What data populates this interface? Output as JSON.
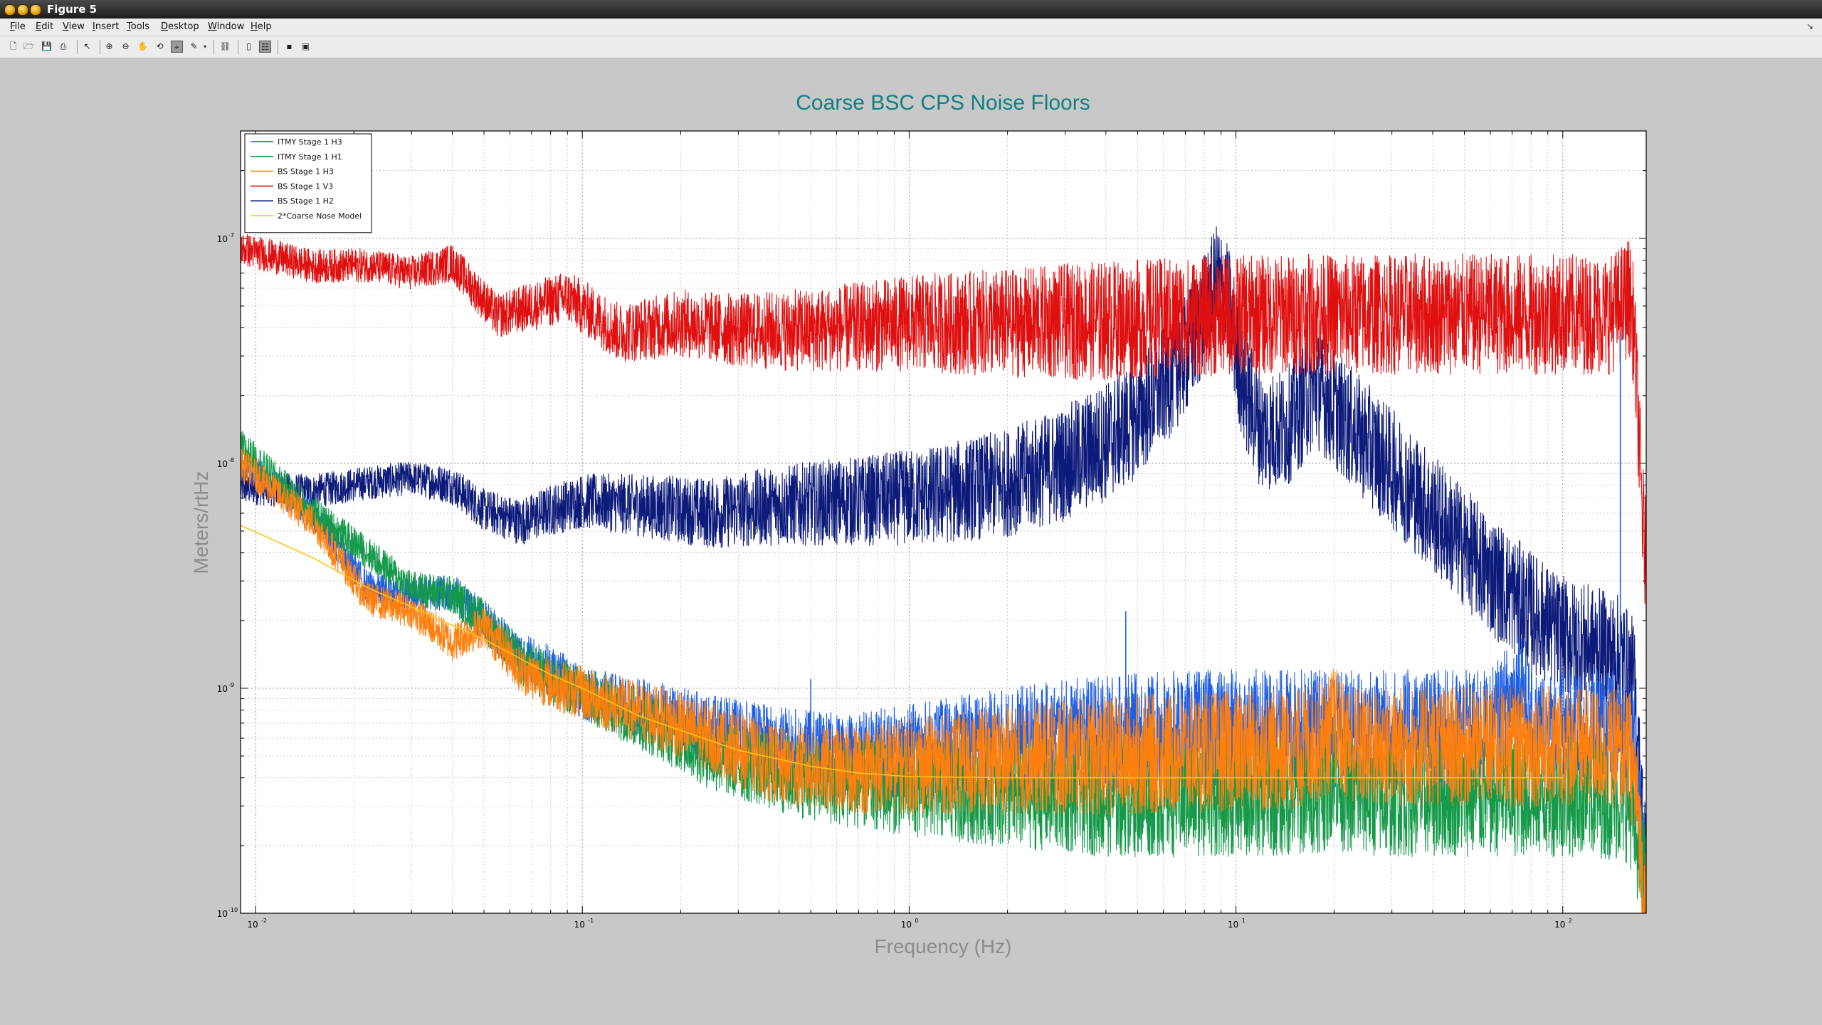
{
  "window": {
    "title": "Figure 5",
    "menu": [
      "File",
      "Edit",
      "View",
      "Insert",
      "Tools",
      "Desktop",
      "Window",
      "Help"
    ],
    "menu_accel": [
      "F",
      "E",
      "V",
      "I",
      "T",
      "D",
      "W",
      "H"
    ],
    "toolbar_icons": [
      "new-figure-icon",
      "open-file-icon",
      "save-icon",
      "print-icon",
      "select-arrow-icon",
      "zoom-in-icon",
      "zoom-out-icon",
      "pan-hand-icon",
      "rotate-3d-icon",
      "data-cursor-icon",
      "brush-icon",
      "link-icon",
      "colorbar-icon",
      "legend-icon",
      "hide-plot-tools-icon",
      "show-plot-tools-icon"
    ]
  },
  "chart_data": {
    "type": "line",
    "title": "Coarse BSC CPS Noise Floors",
    "xlabel": "Frequency (Hz)",
    "ylabel": "Meters/rtHz",
    "xscale": "log",
    "yscale": "log",
    "xlim": [
      0.009,
      180
    ],
    "ylim": [
      1e-10,
      3e-07
    ],
    "grid": true,
    "legend_position": "top-left",
    "xticks": [
      0.01,
      0.1,
      1,
      10,
      100
    ],
    "xtick_labels": [
      [
        "10",
        "-2"
      ],
      [
        "10",
        "-1"
      ],
      [
        "10",
        "0"
      ],
      [
        "10",
        "1"
      ],
      [
        "10",
        "2"
      ]
    ],
    "yticks": [
      1e-10,
      1e-09,
      1e-08,
      1e-07
    ],
    "ytick_labels": [
      [
        "10",
        "-10"
      ],
      [
        "10",
        "-9"
      ],
      [
        "10",
        "-8"
      ],
      [
        "10",
        "-7"
      ]
    ],
    "colors": {
      "title": "#0f8080",
      "axis_label": "#8c8c8c"
    },
    "series": [
      {
        "name": "ITMY Stage 1 H3",
        "color": "#1f5fe6",
        "x": [
          0.009,
          0.015,
          0.022,
          0.03,
          0.04,
          0.05,
          0.065,
          0.08,
          0.1,
          0.13,
          0.18,
          0.25,
          0.4,
          0.6,
          1,
          2,
          4,
          8,
          15,
          25,
          40,
          60,
          70,
          75,
          80,
          100,
          130,
          150,
          165,
          175,
          180
        ],
        "y": [
          1e-08,
          6e-09,
          2.8e-09,
          2.6e-09,
          2.7e-09,
          2e-09,
          1.4e-09,
          1.2e-09,
          9.5e-10,
          8.5e-10,
          7.5e-10,
          6.5e-10,
          5.5e-10,
          5e-10,
          5.2e-10,
          5.8e-10,
          6.2e-10,
          6.5e-10,
          6.6e-10,
          6.6e-10,
          6.5e-10,
          6.5e-10,
          9e-10,
          1.1e-09,
          6.6e-10,
          6.5e-10,
          6.6e-10,
          6.5e-10,
          6e-10,
          2e-10,
          1.3e-10
        ]
      },
      {
        "name": "ITMY Stage 1 H1",
        "color": "#159a4a",
        "x": [
          0.009,
          0.015,
          0.022,
          0.03,
          0.04,
          0.05,
          0.065,
          0.08,
          0.1,
          0.13,
          0.18,
          0.25,
          0.4,
          0.6,
          1,
          2,
          4,
          8,
          15,
          19,
          20,
          21,
          25,
          40,
          80,
          120,
          160,
          170,
          180
        ],
        "y": [
          1.2e-08,
          6e-09,
          4e-09,
          2.8e-09,
          2.6e-09,
          2e-09,
          1.3e-09,
          1.1e-09,
          9.5e-10,
          8e-10,
          6.5e-10,
          5e-10,
          4.2e-10,
          3.8e-10,
          3.6e-10,
          3.4e-10,
          3.3e-10,
          3.3e-10,
          3.3e-10,
          3.5e-10,
          4.5e-10,
          3.5e-10,
          3.3e-10,
          3.3e-10,
          3.3e-10,
          3.3e-10,
          3.1e-10,
          2e-10,
          1.3e-10
        ]
      },
      {
        "name": "BS Stage 1 H3",
        "color": "#ff7f0e",
        "x": [
          0.009,
          0.015,
          0.022,
          0.03,
          0.04,
          0.05,
          0.065,
          0.08,
          0.1,
          0.13,
          0.18,
          0.25,
          0.4,
          0.6,
          1,
          2,
          4,
          8,
          15,
          19,
          20,
          21,
          25,
          40,
          80,
          120,
          160,
          170,
          175,
          180
        ],
        "y": [
          1e-08,
          5.5e-09,
          2.5e-09,
          2.2e-09,
          1.6e-09,
          1.9e-09,
          1.2e-09,
          1.05e-09,
          9.5e-10,
          8.3e-10,
          7.2e-10,
          6e-10,
          4.5e-10,
          4.3e-10,
          4.5e-10,
          4.8e-10,
          5e-10,
          5.2e-10,
          5.3e-10,
          6e-10,
          7e-10,
          6e-10,
          5.4e-10,
          5.5e-10,
          5.5e-10,
          5.5e-10,
          5.3e-10,
          3e-10,
          1.5e-10,
          1e-10
        ]
      },
      {
        "name": "BS Stage 1 V3",
        "color": "#e01010",
        "x": [
          0.009,
          0.015,
          0.022,
          0.03,
          0.04,
          0.055,
          0.07,
          0.09,
          0.13,
          0.2,
          0.3,
          0.5,
          1,
          2,
          4,
          8,
          15,
          30,
          60,
          100,
          140,
          160,
          165,
          170,
          175,
          180
        ],
        "y": [
          9e-08,
          7.5e-08,
          7.6e-08,
          7e-08,
          7.8e-08,
          4.5e-08,
          5e-08,
          5.5e-08,
          3.8e-08,
          4.2e-08,
          3.9e-08,
          3.9e-08,
          4.2e-08,
          4.2e-08,
          4.3e-08,
          4.5e-08,
          4.6e-08,
          4.6e-08,
          4.6e-08,
          4.6e-08,
          4.6e-08,
          5.5e-08,
          4e-08,
          1.6e-08,
          6e-09,
          3.5e-09
        ]
      },
      {
        "name": "BS Stage 1 H2",
        "color": "#0c1a7a",
        "x": [
          0.009,
          0.015,
          0.022,
          0.03,
          0.04,
          0.05,
          0.065,
          0.08,
          0.1,
          0.15,
          0.25,
          0.4,
          0.7,
          1.2,
          2,
          3,
          4,
          5,
          6,
          7,
          8,
          8.8,
          9.5,
          10.5,
          12,
          14,
          16,
          17.5,
          19,
          22,
          30,
          45,
          60,
          80,
          100,
          130,
          150,
          165,
          172,
          180
        ],
        "y": [
          7.8e-09,
          7.5e-09,
          8.2e-09,
          8.6e-09,
          8e-09,
          6.2e-09,
          5.5e-09,
          6.2e-09,
          6.8e-09,
          6.5e-09,
          6e-09,
          6.5e-09,
          6.8e-09,
          7.2e-09,
          8.2e-09,
          1e-08,
          1.25e-08,
          1.6e-08,
          2.2e-08,
          3e-08,
          4.5e-08,
          6.5e-08,
          5e-08,
          2.2e-08,
          1.4e-08,
          1.4e-08,
          1.8e-08,
          2.2e-08,
          1.9e-08,
          1.5e-08,
          9.5e-09,
          5e-09,
          3.2e-09,
          2.2e-09,
          1.7e-09,
          1.5e-09,
          1.4e-09,
          1.1e-09,
          4e-10,
          1.5e-10
        ]
      },
      {
        "name": "2*Coarse Nose Model",
        "color": "#ffc21a",
        "x": [
          0.009,
          0.015,
          0.022,
          0.03,
          0.05,
          0.08,
          0.1,
          0.15,
          0.2,
          0.3,
          0.5,
          0.7,
          1,
          2,
          5,
          10,
          30,
          100
        ],
        "y": [
          5.3e-09,
          3.8e-09,
          2.8e-09,
          2.3e-09,
          1.65e-09,
          1.15e-09,
          1e-09,
          7.5e-10,
          6.5e-10,
          5.3e-10,
          4.5e-10,
          4.2e-10,
          4.05e-10,
          4e-10,
          4e-10,
          4e-10,
          4e-10,
          4e-10
        ]
      }
    ],
    "spikes": [
      {
        "series": "ITMY Stage 1 H3",
        "x": 0.5,
        "y": 1.1e-09
      },
      {
        "series": "ITMY Stage 1 H3",
        "x": 4.6,
        "y": 2.2e-09
      },
      {
        "series": "ITMY Stage 1 H3",
        "x": 150,
        "y": 3.8e-08
      }
    ]
  }
}
